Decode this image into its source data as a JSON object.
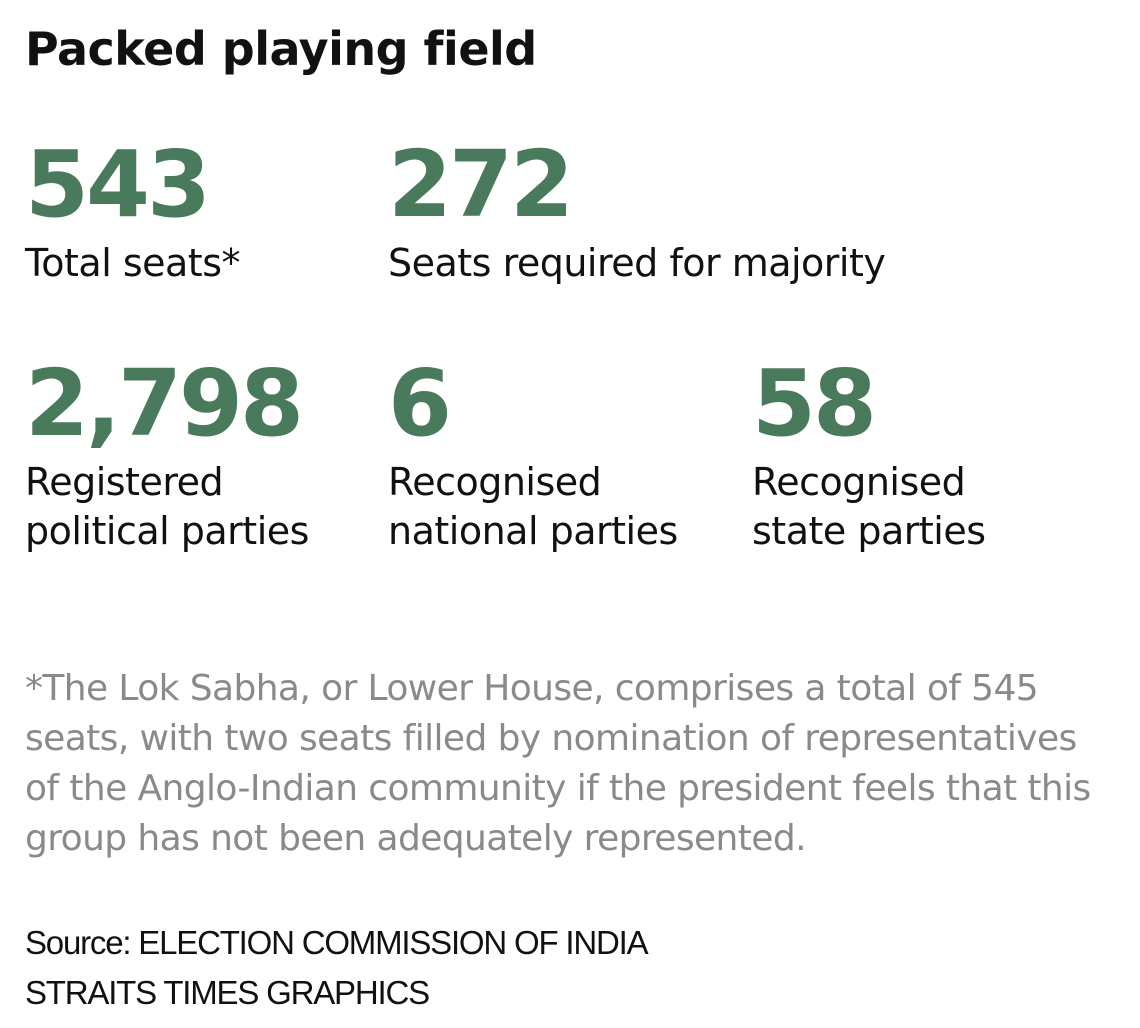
{
  "title": "Packed playing field",
  "accent_color": "#4a7a5c",
  "stats": [
    {
      "value": "543",
      "label_lines": [
        "Total seats*"
      ]
    },
    {
      "value": "272",
      "label_lines": [
        "Seats required for majority"
      ]
    },
    {
      "value": "2,798",
      "label_lines": [
        "Registered",
        "political parties"
      ]
    },
    {
      "value": "6",
      "label_lines": [
        "Recognised",
        "national parties"
      ]
    },
    {
      "value": "58",
      "label_lines": [
        "Recognised",
        "state parties"
      ]
    }
  ],
  "footnote": "*The Lok Sabha, or Lower House, comprises a total of 545 seats, with two seats filled by nomination of representatives of the Anglo-Indian community if the president feels that this group has not been adequately represented.",
  "source": "Source: ELECTION COMMISSION OF INDIA",
  "credit": "STRAITS TIMES GRAPHICS"
}
